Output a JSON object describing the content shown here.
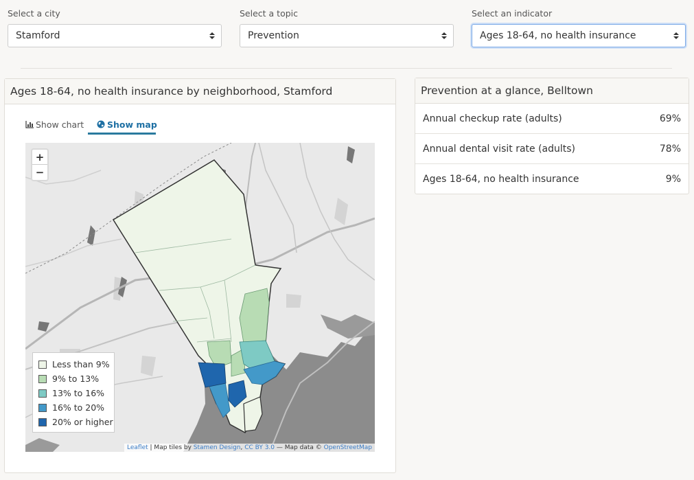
{
  "selectors": [
    {
      "label": "Select a city",
      "value": "Stamford"
    },
    {
      "label": "Select a topic",
      "value": "Prevention"
    },
    {
      "label": "Select an indicator",
      "value": "Ages 18-64, no health insurance"
    }
  ],
  "map_panel": {
    "title": "Ages 18-64, no health insurance by neighborhood, Stamford",
    "tabs": [
      {
        "label": "Show chart",
        "icon": "bar-chart-icon",
        "active": false
      },
      {
        "label": "Show map",
        "icon": "globe-icon",
        "active": true
      }
    ],
    "zoom": {
      "in": "+",
      "out": "−"
    },
    "legend": [
      {
        "label": "Less than 9%",
        "color": "#eef5e8"
      },
      {
        "label": "9% to 13%",
        "color": "#b8dcb4"
      },
      {
        "label": "13% to 16%",
        "color": "#7ecac4"
      },
      {
        "label": "16% to 20%",
        "color": "#4399c9"
      },
      {
        "label": "20% or higher",
        "color": "#1f66ad"
      }
    ],
    "attribution": {
      "leaflet": "Leaflet",
      "tiles_prefix": " | Map tiles by ",
      "stamen": "Stamen Design",
      "sep": ", ",
      "license": "CC BY 3.0",
      "data_prefix": " — Map data © ",
      "osm": "OpenStreetMap"
    }
  },
  "glance_panel": {
    "title": "Prevention at a glance, Belltown",
    "rows": [
      {
        "label": "Annual checkup rate (adults)",
        "value": "69%"
      },
      {
        "label": "Annual dental visit rate (adults)",
        "value": "78%"
      },
      {
        "label": "Ages 18-64, no health insurance",
        "value": "9%"
      }
    ]
  }
}
